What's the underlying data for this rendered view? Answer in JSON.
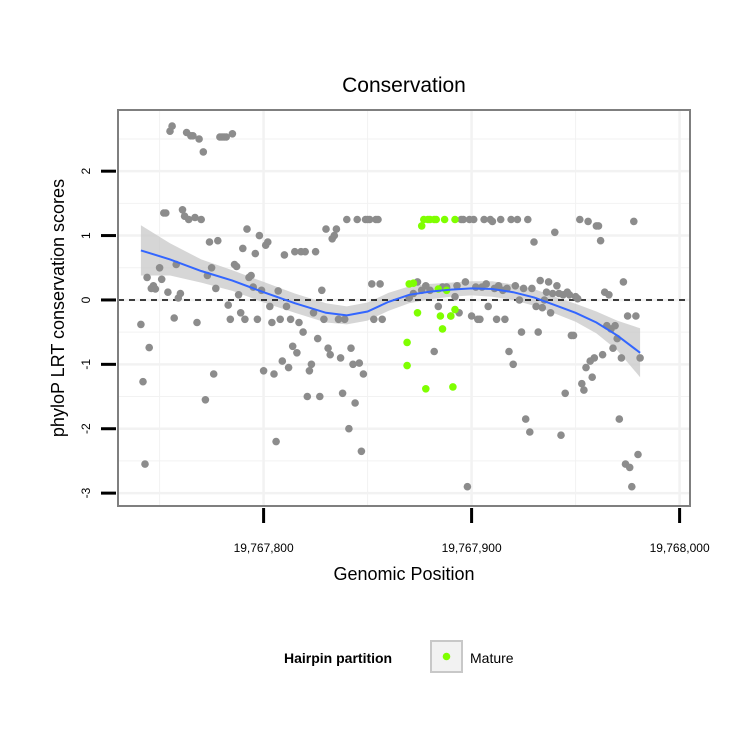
{
  "chart_data": {
    "type": "scatter",
    "title": "Conservation",
    "xlabel": "Genomic Position",
    "ylabel": "phyloP LRT conservation scores",
    "xlim": [
      19767730,
      19768005
    ],
    "ylim": [
      -3.2,
      2.95
    ],
    "xticks": [
      {
        "value": 19767800,
        "label": "19,767,800"
      },
      {
        "value": 19767900,
        "label": "19,767,900"
      },
      {
        "value": 19768000,
        "label": "19,768,000"
      }
    ],
    "yticks": [
      {
        "value": 2,
        "label": "2"
      },
      {
        "value": 1,
        "label": "1"
      },
      {
        "value": 0,
        "label": "0"
      },
      {
        "value": -1,
        "label": "-1"
      },
      {
        "value": -2,
        "label": "-2"
      },
      {
        "value": -3,
        "label": "-3"
      }
    ],
    "grid": true,
    "reference_line": {
      "y": 0,
      "style": "dashed"
    },
    "colors": {
      "other": "#8c8c8c",
      "mature": "#7fff00",
      "smooth_line": "#3366ff",
      "smooth_band": "#c8c8c8",
      "panel_border": "#7f7f7f",
      "grid": "#f2f2f2"
    },
    "legend": {
      "title": "Hairpin partition",
      "position": "bottom",
      "entries": [
        {
          "label": "Mature",
          "color": "#7fff00"
        }
      ]
    },
    "series": [
      {
        "group": "other",
        "points": [
          [
            19767741,
            -0.38
          ],
          [
            19767742,
            -1.27
          ],
          [
            19767743,
            -2.55
          ],
          [
            19767744,
            0.35
          ],
          [
            19767745,
            -0.74
          ],
          [
            19767746,
            0.18
          ],
          [
            19767747,
            0.22
          ],
          [
            19767748,
            0.17
          ],
          [
            19767750,
            0.5
          ],
          [
            19767751,
            0.32
          ],
          [
            19767752,
            1.35
          ],
          [
            19767753,
            1.35
          ],
          [
            19767754,
            0.12
          ],
          [
            19767755,
            2.62
          ],
          [
            19767756,
            2.7
          ],
          [
            19767757,
            -0.28
          ],
          [
            19767758,
            0.55
          ],
          [
            19767759,
            0.03
          ],
          [
            19767760,
            0.1
          ],
          [
            19767761,
            1.4
          ],
          [
            19767762,
            1.3
          ],
          [
            19767763,
            2.6
          ],
          [
            19767764,
            1.25
          ],
          [
            19767765,
            2.55
          ],
          [
            19767766,
            2.55
          ],
          [
            19767767,
            1.28
          ],
          [
            19767768,
            -0.35
          ],
          [
            19767769,
            2.5
          ],
          [
            19767770,
            1.25
          ],
          [
            19767771,
            2.3
          ],
          [
            19767772,
            -1.55
          ],
          [
            19767773,
            0.38
          ],
          [
            19767774,
            0.9
          ],
          [
            19767775,
            0.5
          ],
          [
            19767776,
            -1.15
          ],
          [
            19767777,
            0.18
          ],
          [
            19767778,
            0.92
          ],
          [
            19767779,
            2.53
          ],
          [
            19767780,
            2.53
          ],
          [
            19767781,
            2.53
          ],
          [
            19767782,
            2.53
          ],
          [
            19767783,
            -0.08
          ],
          [
            19767784,
            -0.3
          ],
          [
            19767785,
            2.58
          ],
          [
            19767786,
            0.55
          ],
          [
            19767787,
            0.52
          ],
          [
            19767788,
            0.08
          ],
          [
            19767789,
            -0.2
          ],
          [
            19767790,
            0.8
          ],
          [
            19767791,
            -0.3
          ],
          [
            19767792,
            1.1
          ],
          [
            19767793,
            0.35
          ],
          [
            19767794,
            0.38
          ],
          [
            19767795,
            0.2
          ],
          [
            19767796,
            0.72
          ],
          [
            19767797,
            -0.3
          ],
          [
            19767798,
            1.0
          ],
          [
            19767799,
            0.15
          ],
          [
            19767800,
            -1.1
          ],
          [
            19767801,
            0.85
          ],
          [
            19767802,
            0.9
          ],
          [
            19767803,
            -0.1
          ],
          [
            19767804,
            -0.35
          ],
          [
            19767805,
            -1.15
          ],
          [
            19767806,
            -2.2
          ],
          [
            19767807,
            0.14
          ],
          [
            19767808,
            -0.3
          ],
          [
            19767809,
            -0.95
          ],
          [
            19767810,
            0.7
          ],
          [
            19767811,
            -0.1
          ],
          [
            19767812,
            -1.05
          ],
          [
            19767813,
            -0.3
          ],
          [
            19767814,
            -0.72
          ],
          [
            19767815,
            0.75
          ],
          [
            19767816,
            -0.82
          ],
          [
            19767817,
            -0.35
          ],
          [
            19767818,
            0.75
          ],
          [
            19767819,
            -0.5
          ],
          [
            19767820,
            0.75
          ],
          [
            19767821,
            -1.5
          ],
          [
            19767822,
            -1.1
          ],
          [
            19767823,
            -1.0
          ],
          [
            19767824,
            -0.2
          ],
          [
            19767825,
            0.75
          ],
          [
            19767826,
            -0.6
          ],
          [
            19767827,
            -1.5
          ],
          [
            19767828,
            0.15
          ],
          [
            19767829,
            -0.3
          ],
          [
            19767830,
            1.1
          ],
          [
            19767831,
            -0.75
          ],
          [
            19767832,
            -0.85
          ],
          [
            19767833,
            0.95
          ],
          [
            19767834,
            1.0
          ],
          [
            19767835,
            1.1
          ],
          [
            19767836,
            -0.3
          ],
          [
            19767837,
            -0.9
          ],
          [
            19767838,
            -1.45
          ],
          [
            19767839,
            -0.3
          ],
          [
            19767840,
            1.25
          ],
          [
            19767841,
            -2.0
          ],
          [
            19767842,
            -0.75
          ],
          [
            19767843,
            -1.0
          ],
          [
            19767844,
            -1.6
          ],
          [
            19767845,
            1.25
          ],
          [
            19767846,
            -0.98
          ],
          [
            19767847,
            -2.35
          ],
          [
            19767848,
            -1.15
          ],
          [
            19767849,
            1.25
          ],
          [
            19767850,
            1.25
          ],
          [
            19767851,
            1.25
          ],
          [
            19767852,
            0.25
          ],
          [
            19767853,
            -0.3
          ],
          [
            19767854,
            1.25
          ],
          [
            19767855,
            1.25
          ],
          [
            19767856,
            0.25
          ],
          [
            19767857,
            -0.3
          ],
          [
            19767870,
            0.03
          ],
          [
            19767872,
            0.1
          ],
          [
            19767874,
            0.28
          ],
          [
            19767876,
            0.15
          ],
          [
            19767878,
            0.22
          ],
          [
            19767880,
            0.15
          ],
          [
            19767882,
            -0.8
          ],
          [
            19767884,
            -0.1
          ],
          [
            19767886,
            0.2
          ],
          [
            19767888,
            0.2
          ],
          [
            19767890,
            -0.25
          ],
          [
            19767892,
            0.05
          ],
          [
            19767893,
            0.22
          ],
          [
            19767894,
            -0.2
          ],
          [
            19767895,
            1.25
          ],
          [
            19767896,
            1.25
          ],
          [
            19767897,
            0.28
          ],
          [
            19767898,
            -2.9
          ],
          [
            19767899,
            1.25
          ],
          [
            19767900,
            -0.25
          ],
          [
            19767901,
            1.25
          ],
          [
            19767902,
            0.2
          ],
          [
            19767903,
            -0.3
          ],
          [
            19767904,
            -0.3
          ],
          [
            19767905,
            0.2
          ],
          [
            19767906,
            1.25
          ],
          [
            19767907,
            0.25
          ],
          [
            19767908,
            -0.1
          ],
          [
            19767909,
            1.25
          ],
          [
            19767910,
            1.22
          ],
          [
            19767911,
            0.18
          ],
          [
            19767912,
            -0.3
          ],
          [
            19767913,
            0.22
          ],
          [
            19767914,
            1.25
          ],
          [
            19767915,
            0.15
          ],
          [
            19767916,
            -0.3
          ],
          [
            19767917,
            0.18
          ],
          [
            19767918,
            -0.8
          ],
          [
            19767919,
            1.25
          ],
          [
            19767920,
            -1.0
          ],
          [
            19767921,
            0.22
          ],
          [
            19767922,
            1.25
          ],
          [
            19767923,
            0.0
          ],
          [
            19767924,
            -0.5
          ],
          [
            19767925,
            0.18
          ],
          [
            19767926,
            -1.85
          ],
          [
            19767927,
            1.25
          ],
          [
            19767928,
            -2.05
          ],
          [
            19767929,
            0.18
          ],
          [
            19767930,
            0.9
          ],
          [
            19767931,
            -0.1
          ],
          [
            19767932,
            -0.5
          ],
          [
            19767933,
            0.3
          ],
          [
            19767934,
            -0.12
          ],
          [
            19767935,
            0.0
          ],
          [
            19767936,
            0.12
          ],
          [
            19767937,
            0.28
          ],
          [
            19767938,
            -0.2
          ],
          [
            19767939,
            0.1
          ],
          [
            19767940,
            1.05
          ],
          [
            19767941,
            0.22
          ],
          [
            19767942,
            0.1
          ],
          [
            19767943,
            -2.1
          ],
          [
            19767944,
            0.08
          ],
          [
            19767945,
            -1.45
          ],
          [
            19767946,
            0.12
          ],
          [
            19767947,
            0.08
          ],
          [
            19767948,
            -0.55
          ],
          [
            19767949,
            -0.55
          ],
          [
            19767950,
            0.05
          ],
          [
            19767951,
            0.02
          ],
          [
            19767952,
            1.25
          ],
          [
            19767953,
            -1.3
          ],
          [
            19767954,
            -1.4
          ],
          [
            19767955,
            -1.05
          ],
          [
            19767956,
            1.22
          ],
          [
            19767957,
            -0.95
          ],
          [
            19767958,
            -1.2
          ],
          [
            19767959,
            -0.9
          ],
          [
            19767960,
            1.15
          ],
          [
            19767961,
            1.15
          ],
          [
            19767962,
            0.92
          ],
          [
            19767963,
            -0.85
          ],
          [
            19767964,
            0.12
          ],
          [
            19767965,
            -0.4
          ],
          [
            19767966,
            0.08
          ],
          [
            19767967,
            -0.45
          ],
          [
            19767968,
            -0.75
          ],
          [
            19767969,
            -0.4
          ],
          [
            19767970,
            -0.6
          ],
          [
            19767971,
            -1.85
          ],
          [
            19767972,
            -0.9
          ],
          [
            19767973,
            0.28
          ],
          [
            19767974,
            -2.55
          ],
          [
            19767975,
            -0.25
          ],
          [
            19767976,
            -2.6
          ],
          [
            19767977,
            -2.9
          ],
          [
            19767978,
            1.22
          ],
          [
            19767979,
            -0.25
          ],
          [
            19767980,
            -2.4
          ],
          [
            19767981,
            -0.9
          ]
        ]
      },
      {
        "group": "mature",
        "points": [
          [
            19767869,
            -0.66
          ],
          [
            19767869,
            -1.02
          ],
          [
            19767870,
            0.25
          ],
          [
            19767872,
            0.26
          ],
          [
            19767874,
            -0.2
          ],
          [
            19767876,
            1.15
          ],
          [
            19767877,
            1.25
          ],
          [
            19767878,
            -1.38
          ],
          [
            19767879,
            1.25
          ],
          [
            19767880,
            1.25
          ],
          [
            19767882,
            1.25
          ],
          [
            19767883,
            1.25
          ],
          [
            19767884,
            0.17
          ],
          [
            19767885,
            -0.25
          ],
          [
            19767886,
            -0.45
          ],
          [
            19767887,
            1.25
          ],
          [
            19767888,
            0.15
          ],
          [
            19767890,
            -0.25
          ],
          [
            19767891,
            -1.35
          ],
          [
            19767892,
            -0.15
          ],
          [
            19767892,
            1.25
          ]
        ]
      }
    ],
    "smooth": {
      "x": [
        19767741,
        19767755,
        19767770,
        19767785,
        19767800,
        19767815,
        19767830,
        19767840,
        19767850,
        19767860,
        19767870,
        19767880,
        19767890,
        19767900,
        19767910,
        19767920,
        19767930,
        19767940,
        19767950,
        19767960,
        19767970,
        19767981
      ],
      "y": [
        0.77,
        0.63,
        0.45,
        0.3,
        0.12,
        -0.05,
        -0.2,
        -0.24,
        -0.18,
        -0.03,
        0.08,
        0.13,
        0.16,
        0.18,
        0.17,
        0.12,
        0.04,
        -0.08,
        -0.2,
        -0.35,
        -0.55,
        -0.82
      ],
      "lower": [
        0.38,
        0.38,
        0.27,
        0.14,
        -0.04,
        -0.2,
        -0.35,
        -0.38,
        -0.32,
        -0.17,
        -0.05,
        0.01,
        0.05,
        0.07,
        0.05,
        0.0,
        -0.09,
        -0.21,
        -0.34,
        -0.52,
        -0.78,
        -1.2
      ],
      "upper": [
        1.16,
        0.88,
        0.63,
        0.46,
        0.28,
        0.1,
        -0.05,
        -0.1,
        -0.04,
        0.11,
        0.21,
        0.25,
        0.27,
        0.29,
        0.29,
        0.24,
        0.17,
        0.05,
        -0.06,
        -0.18,
        -0.32,
        -0.44
      ]
    }
  }
}
